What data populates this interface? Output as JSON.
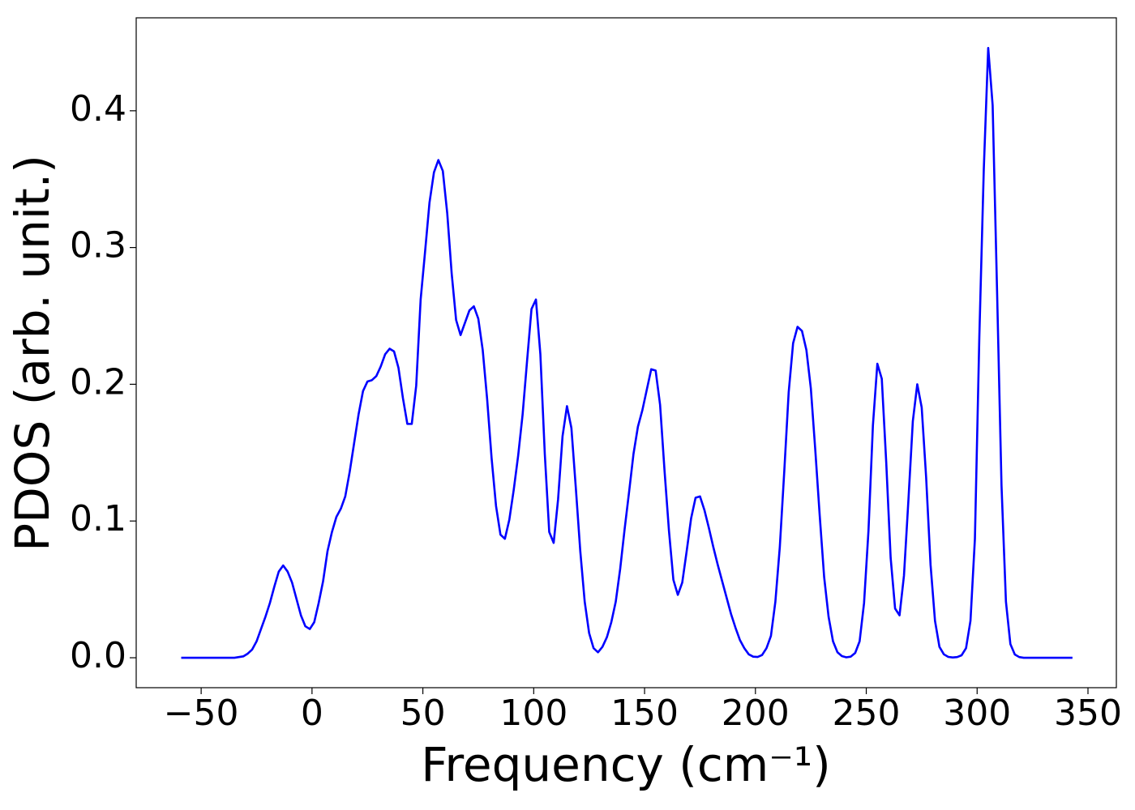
{
  "chart_data": {
    "type": "line",
    "xlabel": "Frequency (cm⁻¹)",
    "ylabel": "PDOS (arb. unit.)",
    "color": "#0000ff",
    "x": [
      -59,
      -57,
      -55,
      -53,
      -51,
      -49,
      -47,
      -45,
      -43,
      -41,
      -39,
      -37,
      -35,
      -33,
      -31,
      -29,
      -27,
      -25,
      -23,
      -21,
      -19,
      -17,
      -15,
      -13,
      -11,
      -9,
      -7,
      -5,
      -3,
      -1,
      1,
      3,
      5,
      7,
      9,
      11,
      13,
      15,
      17,
      19,
      21,
      23,
      25,
      27,
      29,
      31,
      33,
      35,
      37,
      39,
      41,
      43,
      45,
      47,
      49,
      51,
      53,
      55,
      57,
      59,
      61,
      63,
      65,
      67,
      69,
      71,
      73,
      75,
      77,
      79,
      81,
      83,
      85,
      87,
      89,
      91,
      93,
      95,
      97,
      99,
      101,
      103,
      105,
      107,
      109,
      111,
      113,
      115,
      117,
      119,
      121,
      123,
      125,
      127,
      129,
      131,
      133,
      135,
      137,
      139,
      141,
      143,
      145,
      147,
      149,
      151,
      153,
      155,
      157,
      159,
      161,
      163,
      165,
      167,
      169,
      171,
      173,
      175,
      177,
      179,
      181,
      183,
      185,
      187,
      189,
      191,
      193,
      195,
      197,
      199,
      201,
      203,
      205,
      207,
      209,
      211,
      213,
      215,
      217,
      219,
      221,
      223,
      225,
      227,
      229,
      231,
      233,
      235,
      237,
      239,
      241,
      243,
      245,
      247,
      249,
      251,
      253,
      255,
      257,
      259,
      261,
      263,
      265,
      267,
      269,
      271,
      273,
      275,
      277,
      279,
      281,
      283,
      285,
      287,
      289,
      291,
      293,
      295,
      297,
      299,
      301,
      303,
      305,
      307,
      309,
      311,
      313,
      315,
      317,
      319,
      321,
      323,
      325,
      327,
      329,
      331,
      333,
      335,
      337,
      339,
      341,
      343
    ],
    "values": [
      0,
      0,
      0,
      0,
      0,
      0,
      0,
      0,
      0,
      0,
      0,
      0,
      0,
      0.0005,
      0.001,
      0.003,
      0.006,
      0.012,
      0.021,
      0.03,
      0.04,
      0.052,
      0.063,
      0.0675,
      0.063,
      0.055,
      0.043,
      0.031,
      0.023,
      0.021,
      0.026,
      0.04,
      0.056,
      0.078,
      0.092,
      0.103,
      0.109,
      0.118,
      0.136,
      0.157,
      0.178,
      0.195,
      0.202,
      0.203,
      0.206,
      0.213,
      0.222,
      0.226,
      0.224,
      0.212,
      0.19,
      0.171,
      0.171,
      0.199,
      0.262,
      0.297,
      0.333,
      0.355,
      0.364,
      0.356,
      0.325,
      0.281,
      0.247,
      0.236,
      0.245,
      0.254,
      0.257,
      0.248,
      0.225,
      0.189,
      0.146,
      0.111,
      0.09,
      0.087,
      0.101,
      0.123,
      0.148,
      0.178,
      0.217,
      0.255,
      0.262,
      0.222,
      0.149,
      0.092,
      0.084,
      0.116,
      0.162,
      0.184,
      0.168,
      0.124,
      0.078,
      0.041,
      0.018,
      0.007,
      0.004,
      0.008,
      0.015,
      0.026,
      0.041,
      0.065,
      0.094,
      0.121,
      0.149,
      0.169,
      0.181,
      0.196,
      0.211,
      0.21,
      0.185,
      0.137,
      0.093,
      0.057,
      0.046,
      0.055,
      0.078,
      0.102,
      0.117,
      0.118,
      0.108,
      0.095,
      0.081,
      0.068,
      0.056,
      0.044,
      0.032,
      0.022,
      0.013,
      0.007,
      0.0025,
      0.0008,
      0.0006,
      0.002,
      0.007,
      0.016,
      0.041,
      0.081,
      0.136,
      0.194,
      0.23,
      0.242,
      0.239,
      0.225,
      0.197,
      0.152,
      0.104,
      0.059,
      0.03,
      0.012,
      0.004,
      0.0012,
      0.0003,
      0.0008,
      0.0035,
      0.012,
      0.04,
      0.093,
      0.17,
      0.215,
      0.204,
      0.143,
      0.073,
      0.036,
      0.031,
      0.06,
      0.115,
      0.173,
      0.2,
      0.183,
      0.132,
      0.068,
      0.027,
      0.008,
      0.0025,
      0.0006,
      0.0002,
      0.0005,
      0.0018,
      0.007,
      0.027,
      0.087,
      0.235,
      0.357,
      0.446,
      0.404,
      0.268,
      0.126,
      0.041,
      0.01,
      0.0024,
      0.0005,
      0,
      0,
      0,
      0,
      0,
      0,
      0,
      0,
      0,
      0,
      0,
      0
    ],
    "xlim": [
      -79.3,
      362.8
    ],
    "ylim": [
      -0.0219,
      0.468
    ],
    "xticks": [
      {
        "value": -50,
        "label": "−50"
      },
      0,
      50,
      100,
      150,
      200,
      250,
      300,
      350
    ],
    "yticks": [
      {
        "value": 0,
        "label": "0.0"
      },
      0.1,
      0.2,
      0.3,
      0.4
    ],
    "grid": false
  }
}
